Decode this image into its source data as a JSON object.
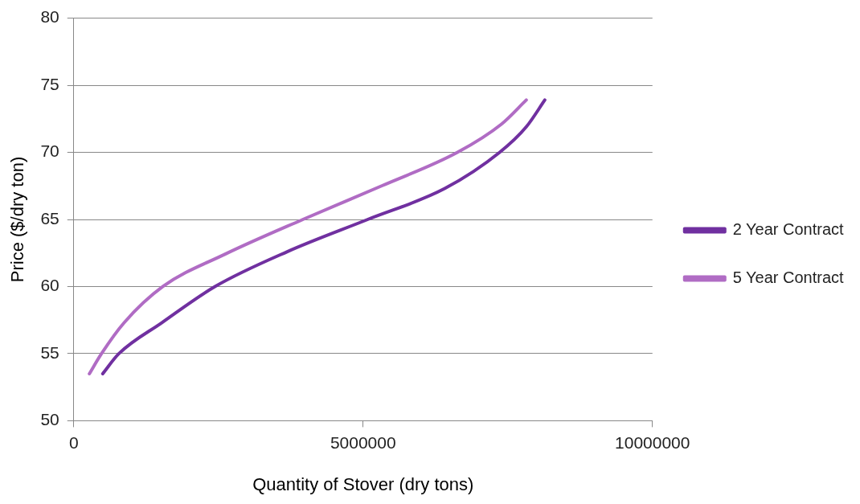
{
  "chart_data": {
    "type": "line",
    "xlabel": "Quantity of Stover (dry tons)",
    "ylabel": "Price ($/dry ton)",
    "xlim": [
      0,
      10000000
    ],
    "xticks": [
      0,
      5000000,
      10000000
    ],
    "ylim": [
      50,
      80
    ],
    "yticks": [
      50,
      55,
      60,
      65,
      70,
      75,
      80
    ],
    "grid": "y",
    "legend": "right",
    "marker": "none",
    "line_style": "solid",
    "series": [
      {
        "name": "2 Year Contract",
        "color": "#7030a0",
        "x": [
          500000,
          780000,
          1520000,
          2440000,
          3690000,
          5080000,
          6410000,
          7360000,
          7820000,
          8140000
        ],
        "values": [
          53.5,
          55,
          57.3,
          60,
          62.6,
          65,
          67.3,
          70,
          71.9,
          73.9
        ]
      },
      {
        "name": "5 Year Contract",
        "color": "#b06cc4",
        "x": [
          270000,
          480000,
          870000,
          1540000,
          2610000,
          3960000,
          5320000,
          6630000,
          7390000,
          7820000
        ],
        "values": [
          53.5,
          55,
          57.3,
          60,
          62.4,
          65,
          67.5,
          70,
          72.1,
          73.9
        ]
      }
    ]
  }
}
